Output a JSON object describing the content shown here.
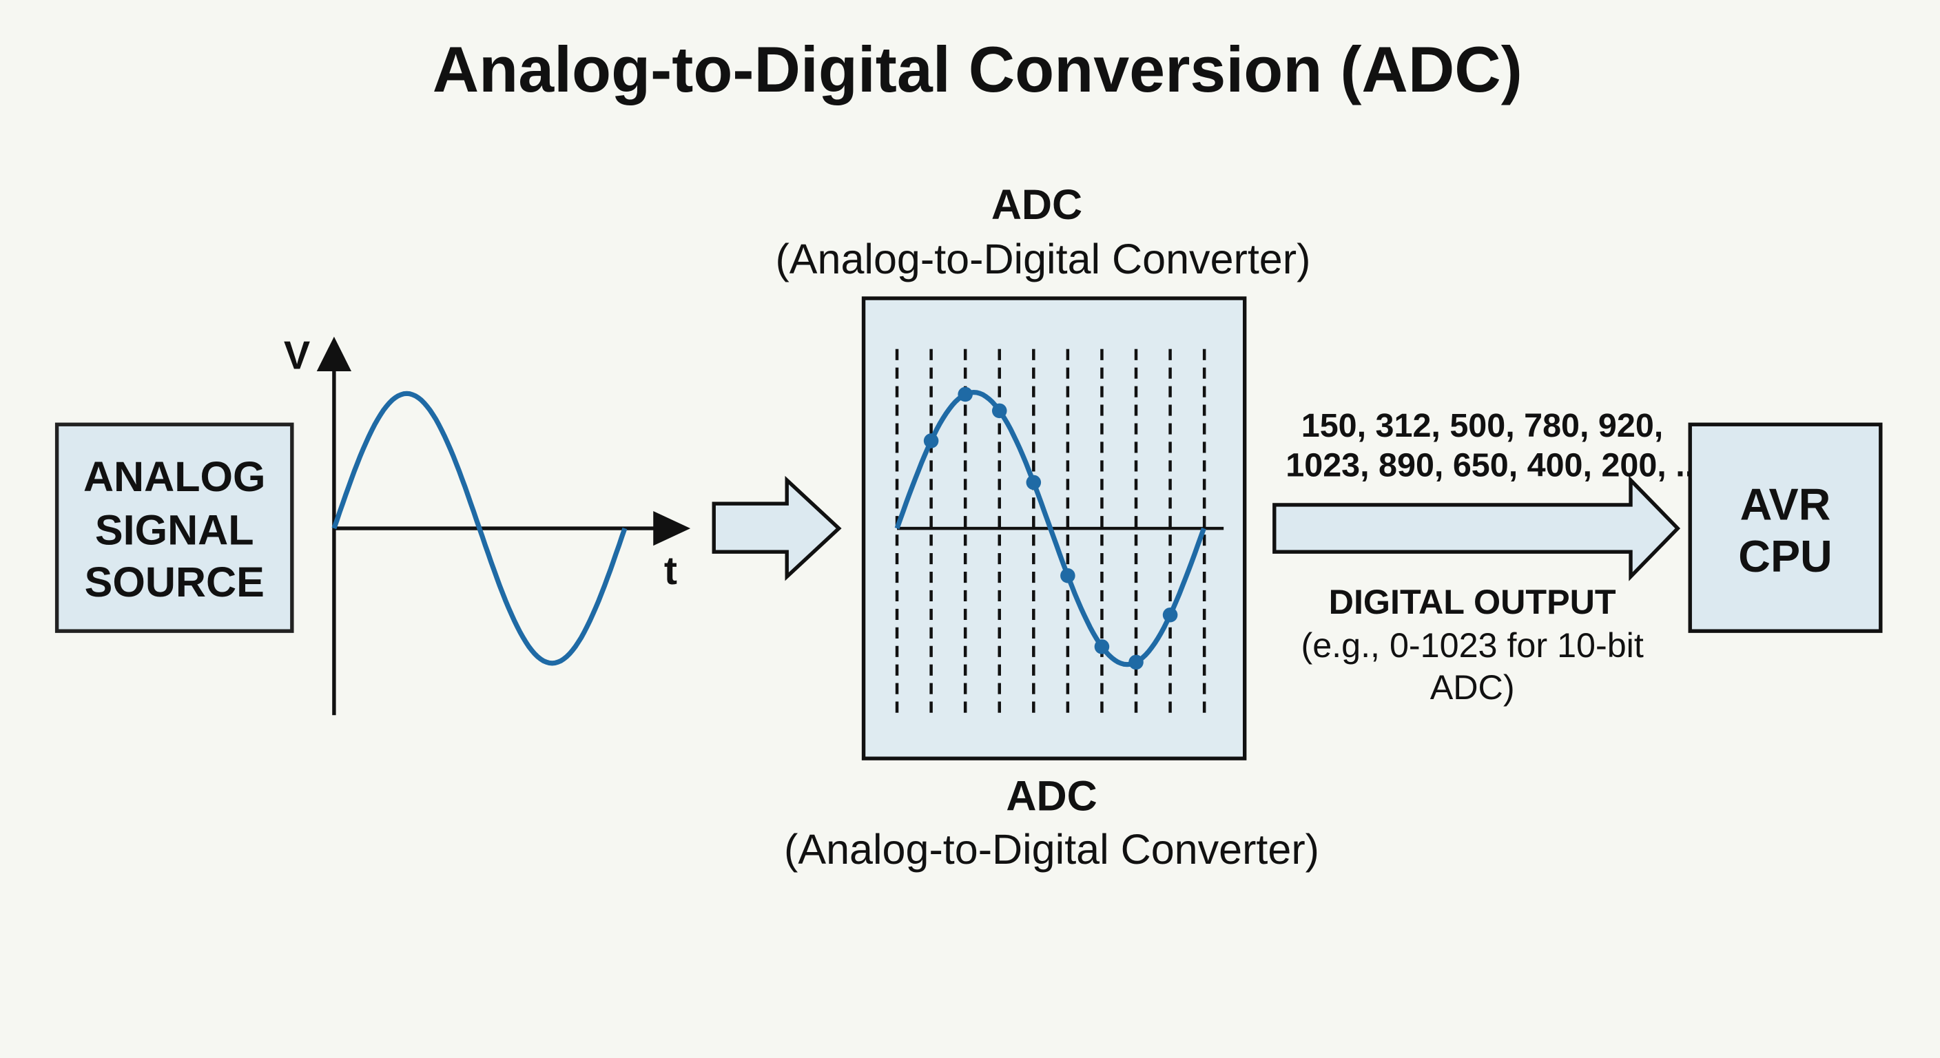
{
  "title": "Analog-to-Digital Conversion (ADC)",
  "source_box": {
    "lines": [
      "ANALOG",
      "SIGNAL",
      "SOURCE"
    ]
  },
  "analog_plot": {
    "y_axis_label": "V",
    "x_axis_label": "t"
  },
  "adc": {
    "top_label": "ADC",
    "top_sublabel": "(Analog-to-Digital Converter)",
    "bottom_label": "ADC",
    "bottom_sublabel": "(Analog-to-Digital Converter)"
  },
  "digital_values": {
    "lines": [
      "150, 312, 500, 780, 920,",
      "1023, 890, 650, 400, 200, ..."
    ]
  },
  "output_label": {
    "title": "DIGITAL OUTPUT",
    "lines": [
      "(e.g., 0-1023 for 10-bit",
      "ADC)"
    ]
  },
  "cpu_box": {
    "lines": [
      "AVR",
      "CPU"
    ]
  },
  "colors": {
    "signal": "#1f6aa5",
    "box_fill": "#dce9f0",
    "background": "#f6f7f2",
    "stroke": "#111111"
  }
}
